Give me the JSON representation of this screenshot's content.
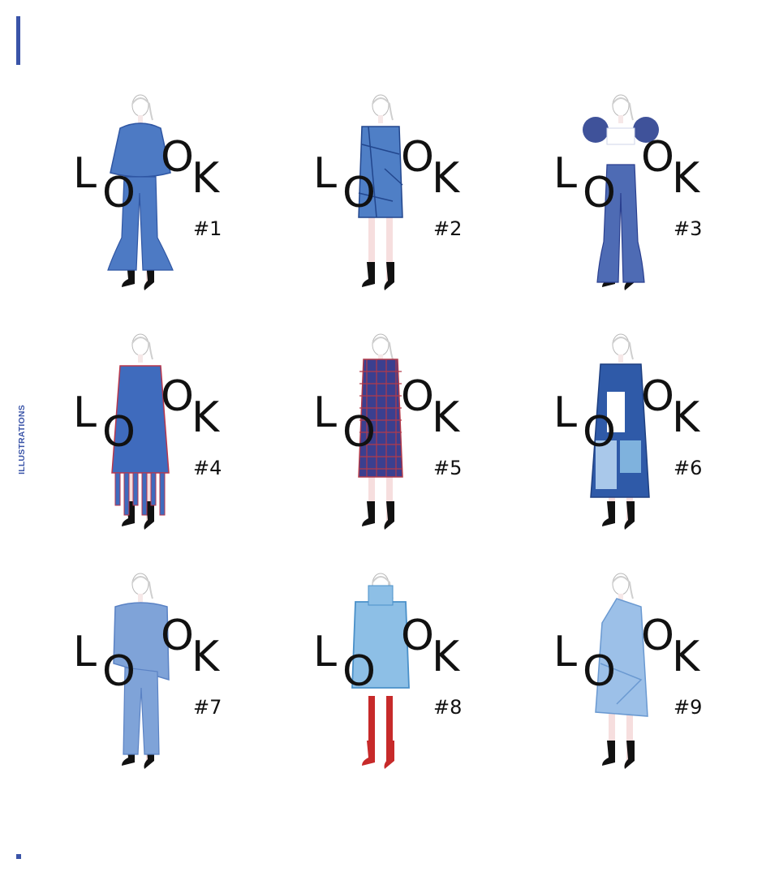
{
  "page": {
    "side_label": "ILLUSTRATIONS",
    "accent_color": "#3a54a8"
  },
  "looks": [
    {
      "letters": [
        "L",
        "O",
        "O",
        "K"
      ],
      "number": "#1",
      "garment": "ruffled blue tunic over flared trousers",
      "garment_color": "#4d7ac4",
      "accent": "#2f56a3",
      "legs": "#f6e0e0",
      "boots": "#111111"
    },
    {
      "letters": [
        "L",
        "O",
        "O",
        "K"
      ],
      "number": "#2",
      "garment": "patchwork blue shift dress",
      "garment_color": "#4f7fc6",
      "accent": "#22468d",
      "legs": "#f6dede",
      "boots": "#111111"
    },
    {
      "letters": [
        "L",
        "O",
        "O",
        "K"
      ],
      "number": "#3",
      "garment": "cropped top with pleated sleeves and flared trousers",
      "garment_color": "#4e6bb4",
      "accent": "#2a3f8f",
      "legs": "#f6dede",
      "boots": "#111111"
    },
    {
      "letters": [
        "L",
        "O",
        "O",
        "K"
      ],
      "number": "#4",
      "garment": "long blue dress with fringe hem",
      "garment_color": "#3f6bbd",
      "accent": "#b8364b",
      "legs": "#f6dede",
      "boots": "#111111"
    },
    {
      "letters": [
        "L",
        "O",
        "O",
        "K"
      ],
      "number": "#5",
      "garment": "plaid coat dress",
      "garment_color": "#3b3f8f",
      "accent": "#b23a4a",
      "legs": "#f6dede",
      "boots": "#111111"
    },
    {
      "letters": [
        "L",
        "O",
        "O",
        "K"
      ],
      "number": "#6",
      "garment": "colour-block patchwork dress",
      "garment_color": "#2f5aa8",
      "accent": "#a9c8ea",
      "legs": "#f6dede",
      "boots": "#111111"
    },
    {
      "letters": [
        "L",
        "O",
        "O",
        "K"
      ],
      "number": "#7",
      "garment": "asymmetric ruffled tunic over trousers",
      "garment_color": "#7fa3d8",
      "accent": "#5a82c4",
      "legs": "#f6dede",
      "boots": "#111111"
    },
    {
      "letters": [
        "L",
        "O",
        "O",
        "K"
      ],
      "number": "#8",
      "garment": "padded light-blue coat with red tights",
      "garment_color": "#8dbfe6",
      "accent": "#4a90c9",
      "legs": "#c72a2a",
      "boots": "#c72a2a"
    },
    {
      "letters": [
        "L",
        "O",
        "O",
        "K"
      ],
      "number": "#9",
      "garment": "one-shoulder draped light-blue dress",
      "garment_color": "#9cc0e8",
      "accent": "#6a99d1",
      "legs": "#f6dede",
      "boots": "#111111"
    }
  ]
}
